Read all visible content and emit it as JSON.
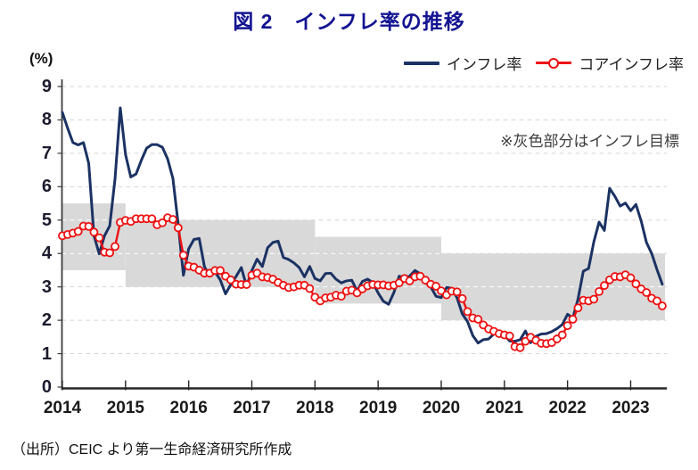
{
  "title": "図 2　インフレ率の推移",
  "axis_unit_label": "(%)",
  "annotation": "※灰色部分はインフレ目標",
  "source": "（出所）CEIC より第一生命経済研究所作成",
  "colors": {
    "title": "#131392",
    "headline_line": "#1b3263",
    "core_line": "#ee1111",
    "target_band": "#d9d9d9",
    "gridline": "#d6d6d6",
    "axis": "#3c3c3c"
  },
  "legend": [
    {
      "label": "インフレ率",
      "color": "#1b3263",
      "marker": "line"
    },
    {
      "label": "コアインフレ率",
      "color": "#ee1111",
      "marker": "open-circle"
    }
  ],
  "chart_data": {
    "type": "line",
    "title": "図 2　インフレ率の推移",
    "ylabel": "(%)",
    "ylim": [
      0,
      9
    ],
    "y_ticks": [
      0,
      1,
      2,
      3,
      4,
      5,
      6,
      7,
      8,
      9
    ],
    "grid": "dashed-horizontal",
    "legend_position": "top-right",
    "frequency": "monthly",
    "x_start": "2014-01",
    "x_end": "2023-07",
    "x_tick_labels": [
      "2014",
      "2015",
      "2016",
      "2017",
      "2018",
      "2019",
      "2020",
      "2021",
      "2022",
      "2023"
    ],
    "series": [
      {
        "name": "インフレ率",
        "color": "#1b3263",
        "marker": "none",
        "values": [
          8.22,
          7.75,
          7.32,
          7.25,
          7.32,
          6.7,
          4.53,
          3.99,
          4.53,
          4.83,
          6.23,
          8.36,
          6.96,
          6.29,
          6.38,
          6.79,
          7.15,
          7.26,
          7.26,
          7.18,
          6.83,
          6.25,
          4.89,
          3.35,
          4.14,
          4.42,
          4.45,
          3.6,
          3.33,
          3.45,
          3.21,
          2.79,
          3.07,
          3.31,
          3.58,
          3.02,
          3.49,
          3.83,
          3.61,
          4.17,
          4.33,
          4.37,
          3.88,
          3.82,
          3.72,
          3.58,
          3.3,
          3.61,
          3.25,
          3.18,
          3.4,
          3.41,
          3.23,
          3.12,
          3.18,
          3.2,
          2.88,
          3.16,
          3.23,
          3.13,
          2.82,
          2.57,
          2.48,
          2.83,
          3.32,
          3.28,
          3.32,
          3.49,
          3.39,
          3.13,
          3.0,
          2.72,
          2.68,
          2.98,
          2.96,
          2.67,
          2.19,
          1.96,
          1.54,
          1.32,
          1.42,
          1.44,
          1.59,
          1.68,
          1.55,
          1.38,
          1.37,
          1.42,
          1.68,
          1.33,
          1.52,
          1.59,
          1.6,
          1.66,
          1.75,
          1.87,
          2.18,
          2.06,
          2.64,
          3.47,
          3.55,
          4.35,
          4.94,
          4.69,
          5.95,
          5.71,
          5.42,
          5.51,
          5.28,
          5.47,
          4.97,
          4.33,
          4.0,
          3.52,
          3.08
        ]
      },
      {
        "name": "コアインフレ率",
        "color": "#ee1111",
        "marker": "open-circle",
        "values": [
          4.53,
          4.57,
          4.61,
          4.66,
          4.82,
          4.81,
          4.64,
          4.47,
          4.04,
          4.02,
          4.21,
          4.93,
          4.99,
          4.96,
          5.04,
          5.04,
          5.04,
          5.04,
          4.86,
          4.92,
          5.07,
          5.02,
          4.77,
          3.95,
          3.62,
          3.59,
          3.5,
          3.41,
          3.41,
          3.49,
          3.49,
          3.32,
          3.21,
          3.08,
          3.07,
          3.07,
          3.35,
          3.41,
          3.3,
          3.28,
          3.23,
          3.13,
          3.05,
          2.98,
          3.0,
          3.05,
          3.05,
          2.95,
          2.69,
          2.58,
          2.67,
          2.69,
          2.75,
          2.72,
          2.87,
          2.9,
          2.82,
          2.94,
          3.03,
          3.07,
          3.06,
          3.06,
          3.03,
          3.05,
          3.12,
          3.25,
          3.18,
          3.3,
          3.32,
          3.2,
          3.08,
          3.02,
          2.88,
          2.76,
          2.87,
          2.85,
          2.65,
          2.26,
          2.07,
          2.03,
          1.86,
          1.74,
          1.67,
          1.6,
          1.56,
          1.53,
          1.21,
          1.18,
          1.37,
          1.49,
          1.4,
          1.31,
          1.3,
          1.33,
          1.44,
          1.56,
          1.84,
          2.03,
          2.37,
          2.6,
          2.58,
          2.63,
          2.86,
          3.04,
          3.21,
          3.31,
          3.3,
          3.36,
          3.27,
          3.09,
          2.94,
          2.83,
          2.66,
          2.58,
          2.43
        ]
      }
    ],
    "target_band": {
      "label": "インフレ目標",
      "color": "#d9d9d9",
      "segments": [
        {
          "from": "2014-01",
          "to": "2015-01",
          "low": 3.5,
          "high": 5.5
        },
        {
          "from": "2015-01",
          "to": "2018-01",
          "low": 3.0,
          "high": 5.0
        },
        {
          "from": "2018-01",
          "to": "2020-01",
          "low": 2.5,
          "high": 4.5
        },
        {
          "from": "2020-01",
          "to": "2023-07",
          "low": 2.0,
          "high": 4.0
        }
      ]
    }
  }
}
